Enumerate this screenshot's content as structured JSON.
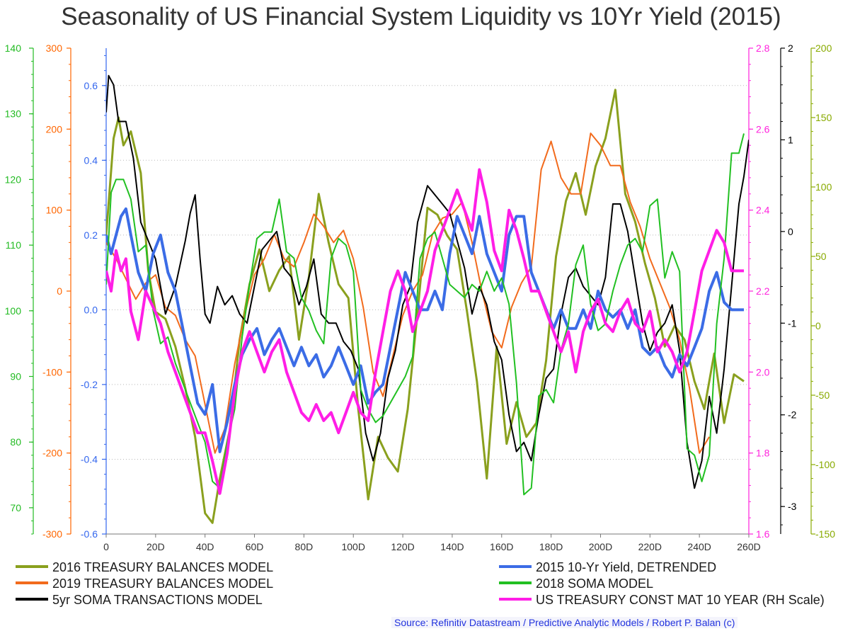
{
  "chart_data": {
    "type": "line",
    "title": "Seasonality of US Financial System Liquidity vs 10Yr Yield (2015)",
    "source": "Source: Refinitiv Datastream / Predictive Analytic Models / Robert P. Balan (c)",
    "x_axis": {
      "ticks": [
        "0",
        "20D",
        "40D",
        "60D",
        "80D",
        "100D",
        "120D",
        "140D",
        "160D",
        "180D",
        "200D",
        "220D",
        "240D",
        "260D"
      ],
      "range": [
        0,
        260
      ]
    },
    "axes": {
      "green": {
        "color": "#22bb22",
        "range": [
          66,
          140
        ],
        "ticks": [
          "140",
          "130",
          "120",
          "110",
          "100",
          "90",
          "80",
          "70"
        ]
      },
      "orange": {
        "color": "#ff6600",
        "range": [
          -300,
          300
        ],
        "ticks": [
          "300",
          "200",
          "100",
          "0",
          "-100",
          "-200",
          "-300"
        ]
      },
      "blue": {
        "color": "#3366ee",
        "range": [
          -0.6,
          0.7
        ],
        "ticks": [
          "0.6",
          "0.4",
          "0.2",
          "0.0",
          "-0.2",
          "-0.4",
          "-0.6"
        ]
      },
      "magenta": {
        "color": "#ff22dd",
        "range": [
          1.6,
          2.8
        ],
        "ticks": [
          "2.8",
          "2.6",
          "2.4",
          "2.2",
          "2.0",
          "1.8",
          "1.6"
        ]
      },
      "black": {
        "color": "#000000",
        "range": [
          -3.3,
          2
        ],
        "ticks": [
          "2",
          "1",
          "0",
          "-1",
          "-2",
          "-3"
        ]
      },
      "olive": {
        "color": "#88aa00",
        "range": [
          -150,
          200
        ],
        "ticks": [
          "200",
          "150",
          "100",
          "50",
          "0",
          "-50",
          "-100",
          "-150"
        ]
      }
    },
    "series": [
      {
        "name": "2016 TREASURY BALANCES MODEL",
        "axis": "olive",
        "color": "#8aa01e",
        "x": [
          0,
          3,
          5,
          7,
          10,
          14,
          17,
          20,
          24,
          28,
          32,
          36,
          40,
          43,
          46,
          50,
          54,
          58,
          62,
          66,
          70,
          74,
          78,
          82,
          86,
          90,
          94,
          98,
          102,
          106,
          110,
          114,
          118,
          122,
          126,
          130,
          134,
          138,
          142,
          146,
          150,
          154,
          158,
          162,
          166,
          170,
          174,
          178,
          182,
          186,
          190,
          194,
          198,
          202,
          206,
          210,
          214,
          218,
          222,
          226,
          230,
          234,
          238,
          242,
          246,
          250,
          254,
          258
        ],
        "y": [
          65,
          135,
          150,
          130,
          140,
          110,
          40,
          10,
          5,
          -15,
          -45,
          -80,
          -135,
          -142,
          -110,
          -75,
          -10,
          30,
          55,
          25,
          40,
          50,
          -10,
          35,
          95,
          60,
          30,
          20,
          -60,
          -125,
          -80,
          -95,
          -105,
          -60,
          10,
          85,
          80,
          65,
          55,
          10,
          -40,
          -110,
          -15,
          -85,
          -55,
          -80,
          -70,
          -25,
          50,
          90,
          110,
          80,
          115,
          135,
          170,
          95,
          75,
          45,
          20,
          -15,
          0,
          -10,
          -40,
          -60,
          -20,
          -70,
          -35,
          -40
        ]
      },
      {
        "name": "2019 TREASURY BALANCES MODEL",
        "axis": "orange",
        "color": "#f26b1d",
        "x": [
          0,
          4,
          8,
          12,
          16,
          20,
          24,
          28,
          32,
          36,
          40,
          44,
          48,
          52,
          56,
          60,
          64,
          68,
          72,
          76,
          80,
          84,
          88,
          92,
          96,
          100,
          104,
          108,
          112,
          116,
          120,
          124,
          128,
          132,
          136,
          140,
          144,
          148,
          152,
          156,
          160,
          164,
          168,
          172,
          176,
          180,
          184,
          188,
          192,
          196,
          200,
          204,
          208,
          212,
          216,
          220,
          224,
          228,
          232,
          236,
          240,
          244
        ],
        "y": [
          60,
          40,
          15,
          -10,
          10,
          20,
          -20,
          -30,
          -60,
          -80,
          -140,
          -200,
          -170,
          -90,
          -30,
          20,
          40,
          70,
          40,
          30,
          60,
          95,
          80,
          60,
          75,
          40,
          -20,
          -100,
          -130,
          -80,
          -30,
          0,
          20,
          70,
          90,
          95,
          110,
          60,
          0,
          -50,
          -70,
          -20,
          10,
          30,
          150,
          185,
          140,
          120,
          120,
          195,
          180,
          155,
          155,
          110,
          80,
          40,
          10,
          -20,
          -60,
          -120,
          -200,
          -180
        ]
      },
      {
        "name": "5yr SOMA TRANSACTIONS MODEL",
        "axis": "black",
        "color": "#000000",
        "x": [
          0,
          1,
          3,
          5,
          8,
          11,
          14,
          17,
          20,
          24,
          28,
          32,
          34,
          36,
          38,
          40,
          42,
          45,
          48,
          51,
          54,
          57,
          60,
          63,
          66,
          69,
          72,
          75,
          78,
          81,
          84,
          87,
          90,
          93,
          96,
          99,
          102,
          105,
          108,
          111,
          114,
          117,
          120,
          123,
          126,
          128,
          130,
          133,
          136,
          139,
          142,
          145,
          148,
          151,
          154,
          157,
          160,
          163,
          166,
          169,
          172,
          175,
          178,
          181,
          184,
          187,
          190,
          193,
          196,
          199,
          202,
          205,
          208,
          211,
          214,
          217,
          220,
          223,
          226,
          229,
          232,
          235,
          238,
          241,
          244,
          247,
          250,
          253,
          256,
          258,
          260
        ],
        "y": [
          1.3,
          1.7,
          1.6,
          1.2,
          1.2,
          0.8,
          0.1,
          -0.1,
          -0.3,
          -0.9,
          -0.6,
          -0.1,
          0.2,
          0.4,
          -0.3,
          -0.9,
          -1.0,
          -0.6,
          -0.8,
          -0.7,
          -0.9,
          -1.0,
          -0.6,
          -0.2,
          -0.1,
          0.0,
          -0.4,
          -0.5,
          -0.8,
          -0.6,
          -0.3,
          -0.9,
          -1.0,
          -1.0,
          -1.2,
          -1.3,
          -1.5,
          -2.2,
          -2.5,
          -2.2,
          -1.6,
          -1.3,
          -0.8,
          -0.6,
          0.1,
          0.3,
          0.5,
          0.4,
          0.3,
          0.2,
          -0.1,
          -0.4,
          -0.9,
          -0.6,
          -0.8,
          -1.2,
          -1.4,
          -2.0,
          -2.4,
          -2.3,
          -2.5,
          -2.0,
          -1.6,
          -1.5,
          -0.9,
          -0.5,
          -0.4,
          -0.6,
          -0.7,
          -0.8,
          -0.5,
          0.3,
          0.3,
          0.0,
          -0.5,
          -1.0,
          -1.3,
          -1.1,
          -1.0,
          -0.8,
          -1.3,
          -2.3,
          -2.8,
          -2.5,
          -1.8,
          -2.2,
          -1.5,
          -0.6,
          0.3,
          0.6,
          1.0
        ]
      },
      {
        "name": "2015 10-Yr Yield, DETRENDED",
        "axis": "blue",
        "color": "#3b6ce6",
        "x": [
          0,
          2,
          4,
          6,
          8,
          10,
          13,
          16,
          19,
          22,
          25,
          28,
          31,
          34,
          37,
          40,
          43,
          46,
          49,
          52,
          55,
          58,
          61,
          64,
          67,
          70,
          73,
          76,
          79,
          82,
          85,
          88,
          91,
          94,
          97,
          100,
          103,
          106,
          109,
          112,
          115,
          118,
          121,
          124,
          127,
          130,
          133,
          136,
          139,
          142,
          145,
          148,
          151,
          154,
          157,
          160,
          163,
          166,
          169,
          172,
          175,
          178,
          181,
          184,
          187,
          190,
          193,
          196,
          199,
          202,
          205,
          208,
          211,
          214,
          217,
          220,
          223,
          226,
          229,
          232,
          235,
          238,
          241,
          244,
          247,
          250,
          253,
          256,
          258
        ],
        "y": [
          0.2,
          0.15,
          0.2,
          0.25,
          0.27,
          0.2,
          0.1,
          0.05,
          0.15,
          0.2,
          0.1,
          0.05,
          -0.05,
          -0.15,
          -0.25,
          -0.28,
          -0.2,
          -0.38,
          -0.3,
          -0.2,
          -0.12,
          -0.08,
          -0.05,
          -0.12,
          -0.08,
          -0.05,
          -0.1,
          -0.15,
          -0.1,
          -0.15,
          -0.12,
          -0.18,
          -0.15,
          -0.1,
          -0.15,
          -0.2,
          -0.15,
          -0.25,
          -0.22,
          -0.2,
          -0.1,
          0.0,
          0.1,
          0.05,
          0.0,
          0.0,
          0.05,
          0.0,
          0.15,
          0.25,
          0.2,
          0.15,
          0.25,
          0.15,
          0.1,
          0.05,
          0.2,
          0.25,
          0.25,
          0.1,
          0.05,
          0.0,
          -0.05,
          0.0,
          -0.05,
          -0.05,
          0.0,
          -0.05,
          0.05,
          0.0,
          -0.02,
          0.0,
          -0.05,
          0.0,
          -0.1,
          -0.12,
          -0.1,
          -0.15,
          -0.18,
          -0.12,
          -0.15,
          -0.1,
          -0.05,
          0.05,
          0.1,
          0.02,
          0.0,
          0.0,
          0.0
        ]
      },
      {
        "name": "2018 SOMA MODEL",
        "axis": "green",
        "color": "#22c022",
        "x": [
          0,
          2,
          4,
          7,
          10,
          13,
          16,
          19,
          22,
          25,
          28,
          31,
          34,
          37,
          40,
          43,
          46,
          49,
          52,
          55,
          58,
          61,
          64,
          67,
          70,
          73,
          76,
          79,
          82,
          85,
          88,
          91,
          94,
          97,
          100,
          103,
          106,
          109,
          112,
          115,
          118,
          121,
          124,
          127,
          130,
          133,
          136,
          139,
          142,
          145,
          148,
          151,
          154,
          157,
          160,
          163,
          166,
          169,
          172,
          175,
          178,
          181,
          184,
          187,
          190,
          193,
          196,
          199,
          202,
          205,
          208,
          211,
          214,
          217,
          220,
          223,
          226,
          229,
          232,
          235,
          238,
          241,
          244,
          247,
          250,
          253,
          256,
          258
        ],
        "y": [
          104,
          118,
          120,
          120,
          117,
          109,
          110,
          100,
          95,
          96,
          92,
          89,
          86,
          83,
          80,
          74,
          73,
          80,
          85,
          96,
          104,
          111,
          112,
          112,
          117,
          109,
          108,
          102,
          100,
          97,
          95,
          108,
          111,
          110,
          106,
          88,
          85,
          83,
          84,
          86,
          88,
          90,
          93,
          108,
          111,
          112,
          108,
          104,
          103,
          102,
          104,
          103,
          106,
          103,
          105,
          101,
          89,
          72,
          73,
          87,
          88,
          86,
          94,
          98,
          107,
          110,
          101,
          97,
          98,
          103,
          107,
          110,
          111,
          109,
          116,
          117,
          105,
          109,
          106,
          79,
          78,
          74,
          78,
          98,
          108,
          124,
          124,
          127
        ]
      },
      {
        "name": "US TREASURY CONST MAT 10 YEAR (RH Scale)",
        "axis": "magenta",
        "color": "#ff1ee6",
        "x": [
          0,
          2,
          4,
          6,
          8,
          10,
          13,
          16,
          19,
          22,
          25,
          28,
          31,
          34,
          37,
          40,
          43,
          46,
          49,
          52,
          55,
          58,
          61,
          64,
          67,
          70,
          73,
          76,
          79,
          82,
          85,
          88,
          91,
          94,
          97,
          100,
          103,
          106,
          109,
          112,
          115,
          118,
          121,
          124,
          127,
          130,
          133,
          136,
          139,
          142,
          145,
          148,
          151,
          154,
          157,
          160,
          163,
          166,
          169,
          172,
          175,
          178,
          181,
          184,
          187,
          190,
          193,
          196,
          199,
          202,
          205,
          208,
          211,
          214,
          217,
          220,
          223,
          226,
          229,
          232,
          235,
          238,
          241,
          244,
          247,
          250,
          253,
          256,
          258
        ],
        "y": [
          2.25,
          2.2,
          2.3,
          2.25,
          2.28,
          2.15,
          2.08,
          2.2,
          2.16,
          2.12,
          2.05,
          2.0,
          1.95,
          1.9,
          1.85,
          1.85,
          1.78,
          1.7,
          1.8,
          1.95,
          2.05,
          2.1,
          2.05,
          2.0,
          2.05,
          2.08,
          2.0,
          1.95,
          1.9,
          1.88,
          1.92,
          1.88,
          1.9,
          1.85,
          1.9,
          1.95,
          1.9,
          1.88,
          2.0,
          2.1,
          2.2,
          2.25,
          2.2,
          2.1,
          2.15,
          2.2,
          2.3,
          2.35,
          2.4,
          2.45,
          2.4,
          2.35,
          2.5,
          2.42,
          2.3,
          2.25,
          2.4,
          2.35,
          2.28,
          2.2,
          2.2,
          2.15,
          2.1,
          2.05,
          2.1,
          2.0,
          2.1,
          2.15,
          2.18,
          2.12,
          2.1,
          2.15,
          2.18,
          2.12,
          2.1,
          2.15,
          2.05,
          2.08,
          2.05,
          2.0,
          2.05,
          2.15,
          2.25,
          2.3,
          2.35,
          2.32,
          2.25,
          2.25,
          2.25
        ]
      }
    ]
  }
}
